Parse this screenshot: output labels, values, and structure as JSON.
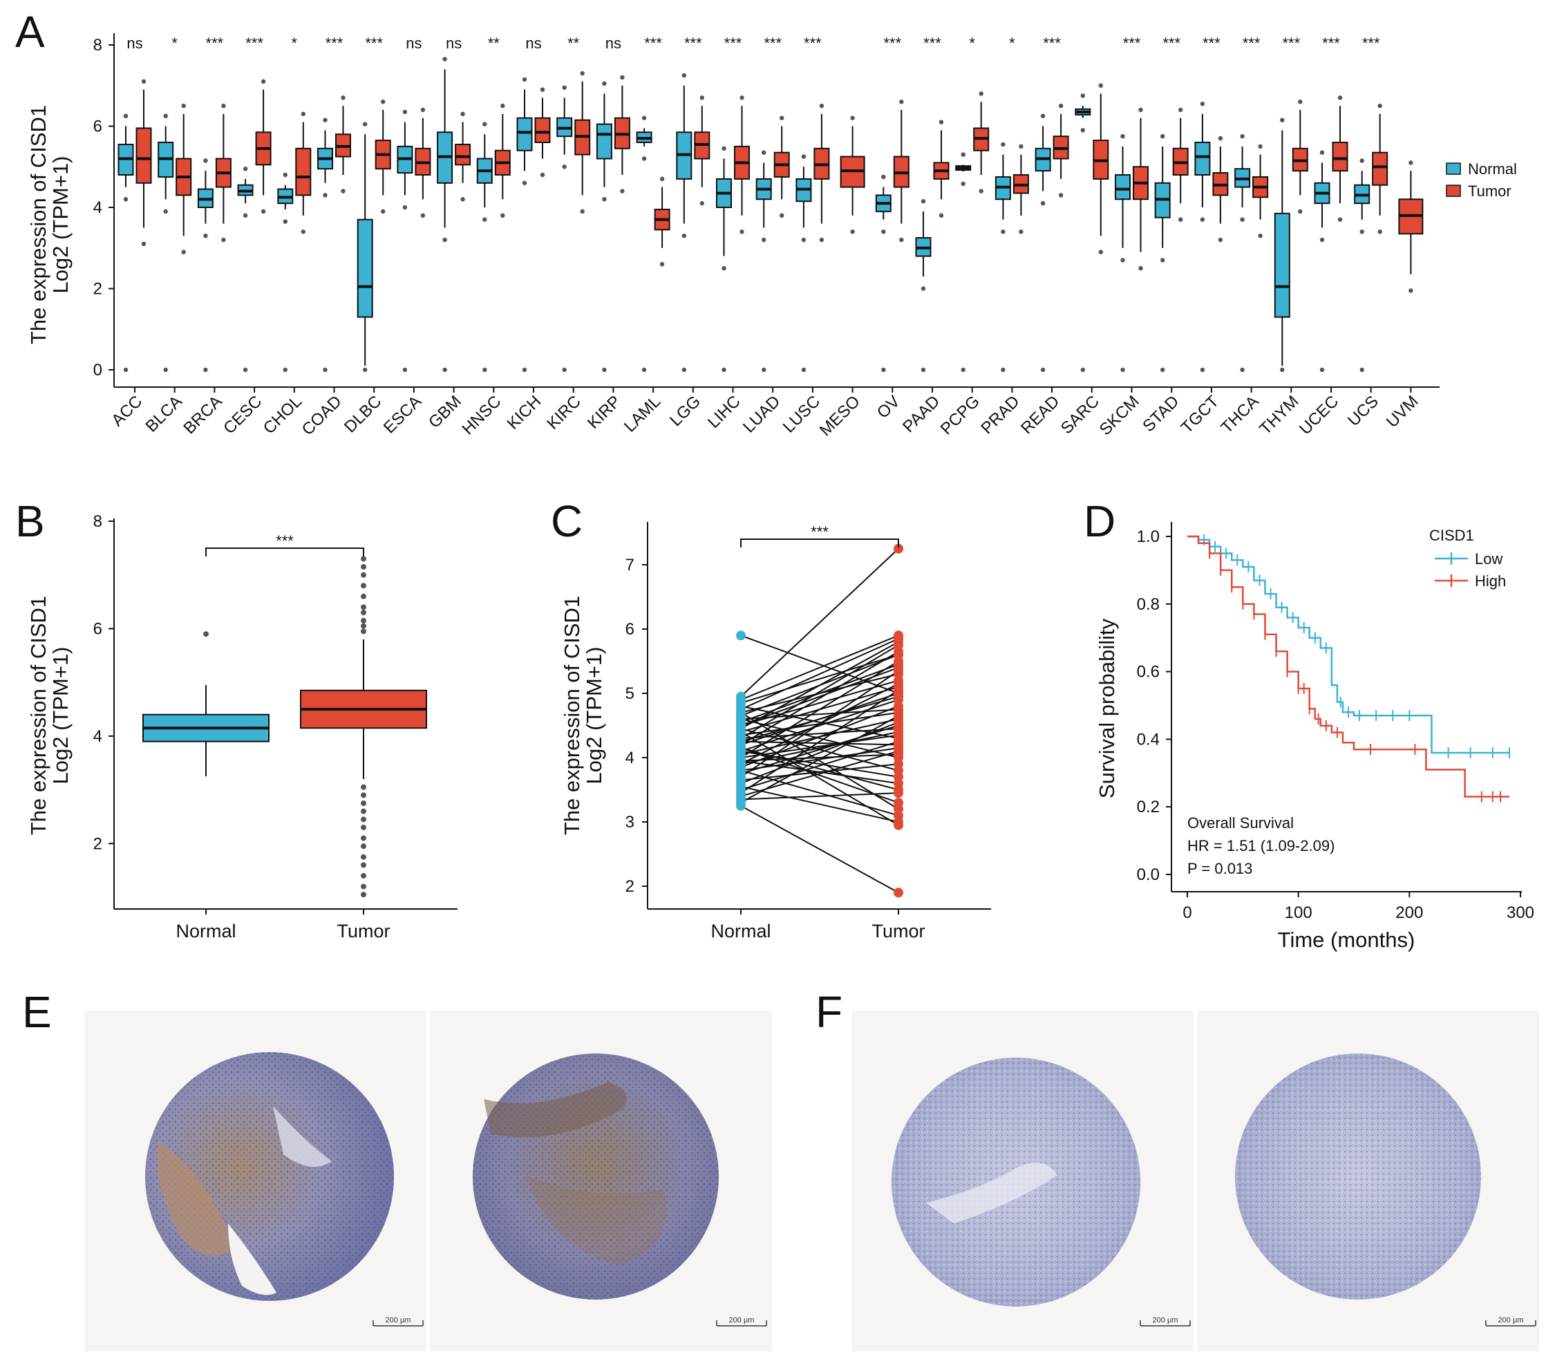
{
  "panel_labels": [
    "A",
    "B",
    "C",
    "D",
    "E",
    "F"
  ],
  "colors": {
    "normal": "#3cb2d3",
    "tumor": "#e04a35",
    "text": "#111111",
    "outlier": "#555555"
  },
  "chart_data": [
    {
      "id": "A",
      "type": "box",
      "ylabel_line1": "The expression of CISD1",
      "ylabel_line2": "Log2 (TPM+1)",
      "ylim": [
        0,
        8
      ],
      "yticks": [
        "0",
        "2",
        "4",
        "6",
        "8"
      ],
      "legend": [
        "Normal",
        "Tumor"
      ],
      "groups": [
        {
          "cancer": "ACC",
          "sig": "ns",
          "normal": [
            4.8,
            5.2,
            5.55,
            4.5,
            6.0
          ],
          "tumor": [
            4.6,
            5.2,
            5.95,
            3.5,
            6.9
          ]
        },
        {
          "cancer": "BLCA",
          "sig": "*",
          "normal": [
            4.75,
            5.2,
            5.6,
            4.2,
            6.0
          ],
          "tumor": [
            4.3,
            4.75,
            5.2,
            3.3,
            6.3
          ]
        },
        {
          "cancer": "BRCA",
          "sig": "***",
          "normal": [
            4.0,
            4.2,
            4.45,
            3.6,
            4.9
          ],
          "tumor": [
            4.5,
            4.85,
            5.2,
            3.6,
            6.3
          ]
        },
        {
          "cancer": "CESC",
          "sig": "***",
          "normal": [
            4.3,
            4.4,
            4.55,
            4.1,
            4.7
          ],
          "tumor": [
            5.05,
            5.45,
            5.85,
            4.3,
            6.9
          ]
        },
        {
          "cancer": "CHOL",
          "sig": "*",
          "normal": [
            4.1,
            4.25,
            4.45,
            3.95,
            4.55
          ],
          "tumor": [
            4.3,
            4.75,
            5.45,
            3.8,
            6.1
          ]
        },
        {
          "cancer": "COAD",
          "sig": "***",
          "normal": [
            4.95,
            5.2,
            5.45,
            4.6,
            5.9
          ],
          "tumor": [
            5.25,
            5.5,
            5.8,
            4.8,
            6.5
          ]
        },
        {
          "cancer": "DLBC",
          "sig": "***",
          "normal": [
            1.3,
            2.05,
            3.7,
            0.1,
            5.8
          ],
          "tumor": [
            4.95,
            5.3,
            5.65,
            4.3,
            6.4
          ]
        },
        {
          "cancer": "ESCA",
          "sig": "ns",
          "normal": [
            4.85,
            5.2,
            5.5,
            4.3,
            6.1
          ],
          "tumor": [
            4.8,
            5.1,
            5.45,
            4.2,
            6.2
          ]
        },
        {
          "cancer": "GBM",
          "sig": "ns",
          "normal": [
            4.6,
            5.25,
            5.85,
            3.5,
            7.4
          ],
          "tumor": [
            5.05,
            5.25,
            5.55,
            4.6,
            6.1
          ]
        },
        {
          "cancer": "HNSC",
          "sig": "**",
          "normal": [
            4.6,
            4.9,
            5.2,
            4.0,
            5.8
          ],
          "tumor": [
            4.8,
            5.1,
            5.4,
            4.2,
            6.3
          ]
        },
        {
          "cancer": "KICH",
          "sig": "ns",
          "normal": [
            5.4,
            5.85,
            6.2,
            4.9,
            6.9
          ],
          "tumor": [
            5.6,
            5.85,
            6.2,
            5.2,
            6.7
          ]
        },
        {
          "cancer": "KIRC",
          "sig": "**",
          "normal": [
            5.75,
            5.95,
            6.2,
            5.3,
            6.7
          ],
          "tumor": [
            5.3,
            5.75,
            6.15,
            4.3,
            7.1
          ]
        },
        {
          "cancer": "KIRP",
          "sig": "ns",
          "normal": [
            5.2,
            5.8,
            6.05,
            4.5,
            6.8
          ],
          "tumor": [
            5.45,
            5.8,
            6.2,
            4.8,
            7.0
          ]
        },
        {
          "cancer": "LAML",
          "sig": "***",
          "normal": [
            5.6,
            5.7,
            5.85,
            5.5,
            5.95
          ],
          "tumor": [
            3.45,
            3.7,
            3.95,
            3.0,
            4.5
          ]
        },
        {
          "cancer": "LGG",
          "sig": "***",
          "normal": [
            4.7,
            5.3,
            5.85,
            3.6,
            7.0
          ],
          "tumor": [
            5.2,
            5.55,
            5.85,
            4.5,
            6.5
          ]
        },
        {
          "cancer": "LIHC",
          "sig": "***",
          "normal": [
            4.0,
            4.35,
            4.7,
            2.8,
            5.2
          ],
          "tumor": [
            4.7,
            5.1,
            5.5,
            3.8,
            6.5
          ]
        },
        {
          "cancer": "LUAD",
          "sig": "***",
          "normal": [
            4.2,
            4.45,
            4.7,
            3.5,
            5.1
          ],
          "tumor": [
            4.75,
            5.05,
            5.35,
            4.2,
            6.0
          ]
        },
        {
          "cancer": "LUSC",
          "sig": "***",
          "normal": [
            4.15,
            4.45,
            4.7,
            3.5,
            5.0
          ],
          "tumor": [
            4.7,
            5.05,
            5.45,
            3.6,
            6.3
          ]
        },
        {
          "cancer": "MESO",
          "sig": "",
          "normal": null,
          "tumor": [
            4.5,
            4.9,
            5.25,
            3.8,
            6.0
          ]
        },
        {
          "cancer": "OV",
          "sig": "***",
          "normal": [
            3.9,
            4.1,
            4.3,
            3.7,
            4.5
          ],
          "tumor": [
            4.5,
            4.85,
            5.25,
            3.6,
            6.4
          ]
        },
        {
          "cancer": "PAAD",
          "sig": "***",
          "normal": [
            2.8,
            3.0,
            3.25,
            2.3,
            3.9
          ],
          "tumor": [
            4.7,
            4.9,
            5.1,
            4.2,
            5.9
          ]
        },
        {
          "cancer": "PCPG",
          "sig": "*",
          "normal": [
            4.92,
            4.97,
            5.02,
            4.88,
            5.05
          ],
          "tumor": [
            5.4,
            5.7,
            5.95,
            4.8,
            6.6
          ]
        },
        {
          "cancer": "PRAD",
          "sig": "*",
          "normal": [
            4.2,
            4.5,
            4.75,
            3.7,
            5.3
          ],
          "tumor": [
            4.35,
            4.55,
            4.8,
            3.8,
            5.3
          ]
        },
        {
          "cancer": "READ",
          "sig": "***",
          "normal": [
            4.9,
            5.2,
            5.45,
            4.4,
            6.0
          ],
          "tumor": [
            5.2,
            5.45,
            5.75,
            4.7,
            6.3
          ]
        },
        {
          "cancer": "SARC",
          "sig": "",
          "normal": [
            6.28,
            6.35,
            6.42,
            6.2,
            6.5
          ],
          "tumor": [
            4.7,
            5.15,
            5.65,
            3.3,
            6.8
          ]
        },
        {
          "cancer": "SKCM",
          "sig": "***",
          "normal": [
            4.2,
            4.45,
            4.8,
            3.0,
            5.5
          ],
          "tumor": [
            4.2,
            4.6,
            5.0,
            2.9,
            6.2
          ]
        },
        {
          "cancer": "STAD",
          "sig": "***",
          "normal": [
            3.75,
            4.2,
            4.6,
            3.0,
            5.5
          ],
          "tumor": [
            4.8,
            5.1,
            5.45,
            4.1,
            6.2
          ]
        },
        {
          "cancer": "TGCT",
          "sig": "***",
          "normal": [
            4.8,
            5.25,
            5.6,
            4.0,
            6.3
          ],
          "tumor": [
            4.3,
            4.55,
            4.85,
            3.6,
            5.5
          ]
        },
        {
          "cancer": "THCA",
          "sig": "***",
          "normal": [
            4.5,
            4.7,
            4.95,
            4.0,
            5.5
          ],
          "tumor": [
            4.25,
            4.5,
            4.75,
            3.7,
            5.3
          ]
        },
        {
          "cancer": "THYM",
          "sig": "***",
          "normal": [
            1.3,
            2.05,
            3.85,
            0.1,
            5.9
          ],
          "tumor": [
            4.9,
            5.15,
            5.45,
            4.3,
            6.4
          ]
        },
        {
          "cancer": "UCEC",
          "sig": "***",
          "normal": [
            4.1,
            4.35,
            4.6,
            3.5,
            5.1
          ],
          "tumor": [
            4.9,
            5.2,
            5.6,
            4.1,
            6.5
          ]
        },
        {
          "cancer": "UCS",
          "sig": "***",
          "normal": [
            4.1,
            4.3,
            4.55,
            3.7,
            4.9
          ],
          "tumor": [
            4.55,
            5.0,
            5.35,
            3.8,
            6.3
          ]
        },
        {
          "cancer": "UVM",
          "sig": "",
          "normal": null,
          "tumor": [
            3.35,
            3.8,
            4.2,
            2.35,
            4.9
          ]
        }
      ]
    },
    {
      "id": "B",
      "type": "box",
      "ylabel_line1": "The expression of CISD1",
      "ylabel_line2": "Log2 (TPM+1)",
      "ylim": [
        1.0,
        8.0
      ],
      "yticks": [
        "2",
        "4",
        "6",
        "8"
      ],
      "categories": [
        "Normal",
        "Tumor"
      ],
      "significance": "***",
      "boxes": [
        {
          "name": "Normal",
          "q1": 3.9,
          "median": 4.15,
          "q3": 4.4,
          "whisker_low": 3.25,
          "whisker_high": 4.95
        },
        {
          "name": "Tumor",
          "q1": 4.15,
          "median": 4.5,
          "q3": 4.85,
          "whisker_low": 3.2,
          "whisker_high": 5.8
        }
      ],
      "outliers_normal": [
        5.9
      ],
      "outliers_tumor": [
        7.3,
        7.15,
        7.0,
        6.8,
        6.6,
        6.4,
        6.3,
        6.15,
        6.05,
        5.95,
        3.05,
        2.9,
        2.75,
        2.6,
        2.45,
        2.3,
        2.1,
        1.95,
        1.75,
        1.6,
        1.4,
        1.2,
        1.05
      ]
    },
    {
      "id": "C",
      "type": "paired-scatter",
      "ylabel_line1": "The expression of CISD1",
      "ylabel_line2": "Log2 (TPM+1)",
      "ylim": [
        1.8,
        7.5
      ],
      "yticks": [
        "2",
        "3",
        "4",
        "5",
        "6",
        "7"
      ],
      "categories": [
        "Normal",
        "Tumor"
      ],
      "significance": "***",
      "pairs": [
        [
          5.9,
          5.0
        ],
        [
          4.95,
          7.25
        ],
        [
          4.9,
          5.9
        ],
        [
          4.85,
          5.6
        ],
        [
          4.8,
          4.3
        ],
        [
          4.75,
          5.85
        ],
        [
          4.7,
          5.3
        ],
        [
          4.65,
          5.6
        ],
        [
          4.6,
          4.0
        ],
        [
          4.55,
          5.45
        ],
        [
          4.5,
          5.2
        ],
        [
          4.45,
          3.8
        ],
        [
          4.4,
          5.1
        ],
        [
          4.35,
          4.7
        ],
        [
          4.3,
          5.75
        ],
        [
          4.25,
          4.2
        ],
        [
          4.2,
          5.0
        ],
        [
          4.15,
          3.3
        ],
        [
          4.1,
          4.9
        ],
        [
          4.05,
          4.6
        ],
        [
          4.0,
          5.5
        ],
        [
          3.95,
          3.6
        ],
        [
          3.9,
          4.4
        ],
        [
          3.85,
          4.8
        ],
        [
          3.8,
          3.1
        ],
        [
          3.75,
          4.5
        ],
        [
          3.7,
          5.35
        ],
        [
          3.65,
          3.9
        ],
        [
          3.6,
          4.55
        ],
        [
          3.55,
          3.0
        ],
        [
          3.5,
          4.25
        ],
        [
          3.45,
          5.05
        ],
        [
          3.4,
          4.1
        ],
        [
          3.35,
          3.45
        ],
        [
          3.3,
          4.65
        ],
        [
          3.25,
          1.9
        ],
        [
          4.4,
          2.95
        ],
        [
          4.2,
          5.65
        ],
        [
          4.0,
          4.35
        ],
        [
          4.6,
          4.75
        ],
        [
          4.7,
          3.2
        ],
        [
          3.9,
          5.15
        ],
        [
          4.3,
          4.45
        ],
        [
          4.5,
          5.4
        ],
        [
          3.8,
          4.15
        ],
        [
          4.1,
          3.7
        ],
        [
          4.25,
          4.95
        ],
        [
          3.95,
          4.05
        ],
        [
          4.45,
          5.8
        ],
        [
          4.15,
          3.5
        ]
      ]
    },
    {
      "id": "D",
      "type": "line",
      "title": "",
      "xlabel": "Time (months)",
      "ylabel": "Survival probability",
      "xlim": [
        0,
        300
      ],
      "ylim": [
        0,
        1
      ],
      "xticks": [
        "0",
        "100",
        "200",
        "300"
      ],
      "yticks": [
        "0.0",
        "0.2",
        "0.4",
        "0.6",
        "0.8",
        "1.0"
      ],
      "legend_title": "CISD1",
      "series": [
        {
          "name": "Low",
          "x": [
            0,
            10,
            20,
            30,
            40,
            50,
            60,
            70,
            80,
            90,
            100,
            110,
            120,
            130,
            135,
            140,
            150,
            200,
            220,
            290
          ],
          "y": [
            1.0,
            0.99,
            0.97,
            0.95,
            0.93,
            0.91,
            0.87,
            0.83,
            0.79,
            0.76,
            0.73,
            0.7,
            0.67,
            0.56,
            0.51,
            0.48,
            0.47,
            0.47,
            0.36,
            0.36
          ]
        },
        {
          "name": "High",
          "x": [
            0,
            10,
            20,
            30,
            40,
            50,
            60,
            70,
            80,
            90,
            100,
            110,
            115,
            120,
            130,
            140,
            150,
            200,
            215,
            250,
            290
          ],
          "y": [
            1.0,
            0.98,
            0.95,
            0.9,
            0.85,
            0.8,
            0.77,
            0.71,
            0.66,
            0.6,
            0.55,
            0.49,
            0.46,
            0.44,
            0.42,
            0.39,
            0.37,
            0.37,
            0.31,
            0.23,
            0.23
          ]
        }
      ],
      "censor_low_x": [
        15,
        25,
        35,
        45,
        55,
        65,
        75,
        85,
        95,
        105,
        115,
        125,
        138,
        145,
        155,
        170,
        185,
        200,
        235,
        255,
        275,
        290
      ],
      "censor_high_x": [
        20,
        30,
        40,
        50,
        60,
        70,
        80,
        90,
        100,
        105,
        110,
        118,
        125,
        135,
        165,
        205,
        265,
        275,
        282
      ],
      "annotation": [
        "Overall Survival",
        "HR = 1.51 (1.09-2.09)",
        "P = 0.013"
      ]
    }
  ],
  "histology": {
    "scale_label": "200 µm"
  }
}
